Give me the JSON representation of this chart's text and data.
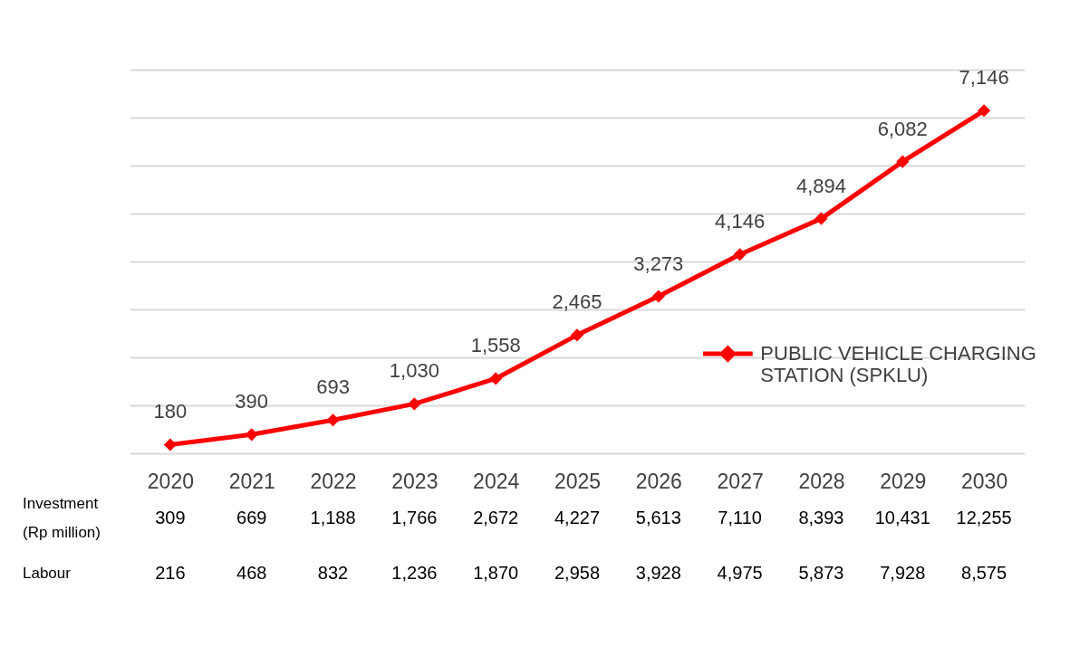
{
  "chart_data": {
    "type": "line",
    "categories": [
      "2020",
      "2021",
      "2022",
      "2023",
      "2024",
      "2025",
      "2026",
      "2027",
      "2028",
      "2029",
      "2030"
    ],
    "series": [
      {
        "name": "PUBLIC VEHICLE CHARGING STATION (SPKLU)",
        "color": "#ff0000",
        "values": [
          180,
          390,
          693,
          1030,
          1558,
          2465,
          3273,
          4146,
          4894,
          6082,
          7146
        ],
        "value_labels": [
          "180",
          "390",
          "693",
          "1,030",
          "1,558",
          "2,465",
          "3,273",
          "4,146",
          "4,894",
          "6,082",
          "7,146"
        ]
      }
    ],
    "ylim": [
      0,
      8000
    ],
    "yticks": [
      {
        "value": 0,
        "label": null
      },
      {
        "value": 1000,
        "label": null
      },
      {
        "value": 2000,
        "label": null
      },
      {
        "value": 3000,
        "label": null
      },
      {
        "value": 4000,
        "label": null
      },
      {
        "value": 5000,
        "label": null
      },
      {
        "value": 6000,
        "label": null
      },
      {
        "value": 7000,
        "label": null
      },
      {
        "value": 8000,
        "label": null
      }
    ],
    "grid": "y",
    "tick_labels": "x",
    "marker": "diamond",
    "line_style": "solid",
    "legend": "right",
    "annotations": [
      "Investment\n(Rp million)",
      "309",
      "669",
      "1,188",
      "1,766",
      "2,672",
      "4,227",
      "5,613",
      "7,110",
      "8,393",
      "10,431",
      "12,255",
      "Labour",
      "216",
      "468",
      "832",
      "1,236",
      "1,870",
      "2,958",
      "3,928",
      "4,975",
      "5,873",
      "7,928",
      "8,575"
    ]
  }
}
